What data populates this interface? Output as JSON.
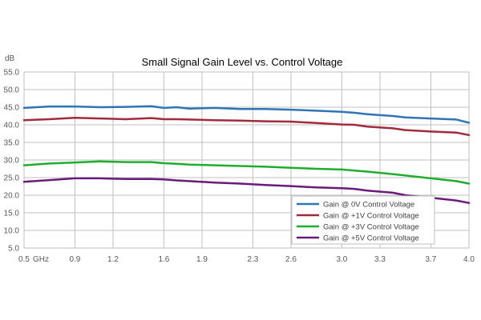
{
  "colors": {
    "grid": "#bfbfbf",
    "axis_text": "#595959",
    "title": "#000000",
    "series": [
      "#2e75b6",
      "#a02b3a",
      "#1fae2c",
      "#6a1b7a"
    ]
  },
  "chart_data": {
    "type": "line",
    "title": "Small Signal Gain Level vs. Control Voltage",
    "ylabel": "dB",
    "xlabel": "",
    "x_unit_label": "GHz",
    "xlim": [
      0.5,
      4.0
    ],
    "ylim": [
      5.0,
      55.0
    ],
    "grid": true,
    "legend_position": "lower-right",
    "x_ticks": [
      {
        "value": 0.5,
        "label": "0.5"
      },
      {
        "value": 0.9,
        "label": "0.9"
      },
      {
        "value": 1.2,
        "label": "1.2"
      },
      {
        "value": 1.6,
        "label": "1.6"
      },
      {
        "value": 1.9,
        "label": "1.9"
      },
      {
        "value": 2.3,
        "label": "2.3"
      },
      {
        "value": 2.6,
        "label": "2.6"
      },
      {
        "value": 3.0,
        "label": "3.0"
      },
      {
        "value": 3.3,
        "label": "3.3"
      },
      {
        "value": 3.7,
        "label": "3.7"
      },
      {
        "value": 4.0,
        "label": "4.0"
      }
    ],
    "y_ticks": [
      "5.0",
      "10.0",
      "15.0",
      "20.0",
      "25.0",
      "30.0",
      "35.0",
      "40.0",
      "45.0",
      "50.0",
      "55.0"
    ],
    "x": [
      0.5,
      0.7,
      0.9,
      1.1,
      1.3,
      1.5,
      1.6,
      1.7,
      1.8,
      2.0,
      2.2,
      2.4,
      2.6,
      2.8,
      3.0,
      3.1,
      3.2,
      3.4,
      3.5,
      3.7,
      3.9,
      4.0
    ],
    "series": [
      {
        "name": "Gain @ 0V Control Voltage",
        "values": [
          44.8,
          45.2,
          45.2,
          45.0,
          45.1,
          45.3,
          44.8,
          45.0,
          44.6,
          44.8,
          44.5,
          44.5,
          44.3,
          44.0,
          43.7,
          43.4,
          43.0,
          42.5,
          42.1,
          41.8,
          41.5,
          40.6
        ]
      },
      {
        "name": "Gain @ +1V Control Voltage",
        "values": [
          41.3,
          41.6,
          42.0,
          41.8,
          41.6,
          41.9,
          41.6,
          41.6,
          41.5,
          41.3,
          41.2,
          41.0,
          40.9,
          40.5,
          40.1,
          40.0,
          39.5,
          39.0,
          38.5,
          38.1,
          37.8,
          37.1
        ]
      },
      {
        "name": "Gain @ +3V Control Voltage",
        "values": [
          28.5,
          29.0,
          29.3,
          29.6,
          29.4,
          29.4,
          29.1,
          28.9,
          28.7,
          28.5,
          28.3,
          28.1,
          27.8,
          27.5,
          27.3,
          27.0,
          26.7,
          26.0,
          25.6,
          24.8,
          24.0,
          23.3
        ]
      },
      {
        "name": "Gain @ +5V Control Voltage",
        "values": [
          23.8,
          24.3,
          24.8,
          24.8,
          24.6,
          24.6,
          24.5,
          24.2,
          24.0,
          23.6,
          23.3,
          22.9,
          22.6,
          22.2,
          22.0,
          21.8,
          21.3,
          20.7,
          20.0,
          19.3,
          18.5,
          17.8
        ]
      }
    ]
  }
}
